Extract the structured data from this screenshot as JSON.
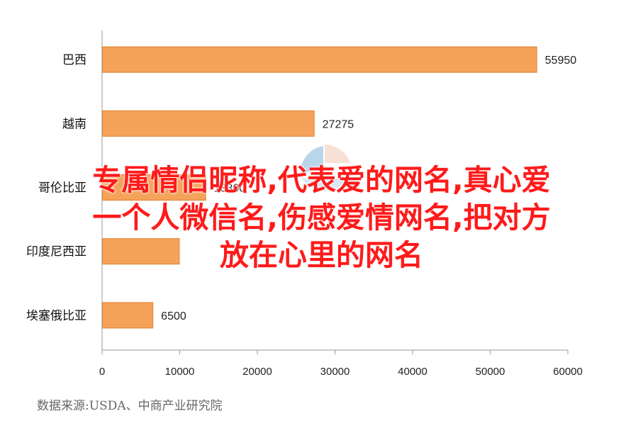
{
  "chart_data": {
    "type": "bar",
    "orientation": "horizontal",
    "categories": [
      "巴西",
      "越南",
      "哥伦比亚",
      "印度尼西亚",
      "埃塞俄比亚"
    ],
    "values": [
      55950,
      27275,
      13300,
      9900,
      6500
    ],
    "value_labels": [
      "55950",
      "27275",
      "13300",
      "",
      "6500"
    ],
    "xlim": [
      0,
      60000
    ],
    "x_ticks": [
      "0",
      "10000",
      "20000",
      "30000",
      "40000",
      "50000",
      "60000"
    ],
    "bar_color": "#f5a25a",
    "bar_edge_color": "#e07f2a",
    "grid": false
  },
  "source": "数据来源:USDA、中商产业研究院",
  "overlay_title": {
    "lines": [
      "专属情侣昵称,代表爱的网名,真心爱",
      "一个人微信名,伤感爱情网名,把对方",
      "放在心里的网名"
    ],
    "color": "#ff1a1a"
  },
  "watermark": {
    "icon": "logo-watermark-icon"
  }
}
